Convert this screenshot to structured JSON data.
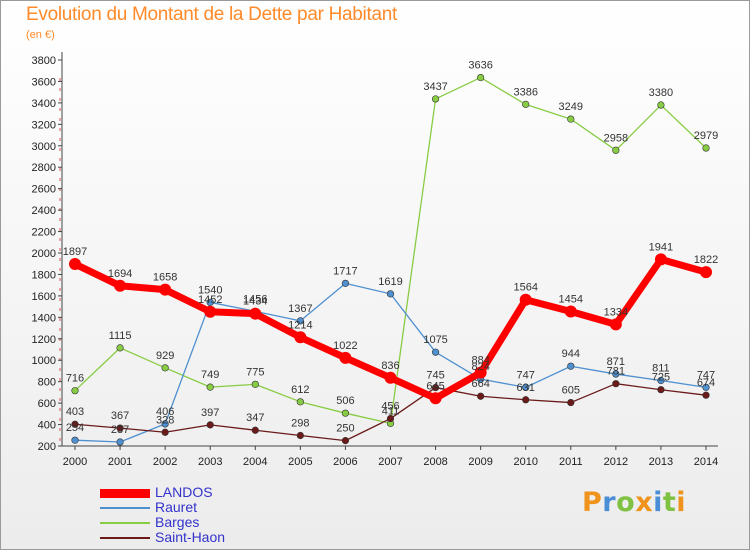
{
  "header": {
    "title": "Evolution du Montant de la Dette par Habitant",
    "subtitle": "(en €)"
  },
  "logo": {
    "text": "Proxiti"
  },
  "chart_data": {
    "type": "line",
    "title": "Evolution du Montant de la Dette par Habitant",
    "subtitle": "(en €)",
    "xlabel": "",
    "ylabel": "",
    "ylim": [
      200,
      3800
    ],
    "ytick_step": 200,
    "grid": false,
    "legend_position": "bottom-left",
    "x": [
      "2000",
      "2001",
      "2002",
      "2003",
      "2004",
      "2005",
      "2006",
      "2007",
      "2008",
      "2009",
      "2010",
      "2011",
      "2012",
      "2013",
      "2014"
    ],
    "series": [
      {
        "name": "LANDOS",
        "color": "#ff0000",
        "values": [
          1897,
          1694,
          1658,
          1452,
          1434,
          1214,
          1022,
          836,
          645,
          884,
          1564,
          1454,
          1334,
          1941,
          1822
        ]
      },
      {
        "name": "Rauret",
        "color": "#4f90d0",
        "values": [
          254,
          237,
          406,
          1540,
          1456,
          1367,
          1717,
          1619,
          1075,
          824,
          747,
          944,
          871,
          811,
          747
        ]
      },
      {
        "name": "Barges",
        "color": "#88cc44",
        "values": [
          716,
          1115,
          929,
          749,
          775,
          612,
          506,
          411,
          3437,
          3636,
          3386,
          3249,
          2958,
          3380,
          2979
        ]
      },
      {
        "name": "Saint-Haon",
        "color": "#6b1a1a",
        "values": [
          403,
          367,
          328,
          397,
          347,
          298,
          250,
          456,
          745,
          664,
          631,
          605,
          781,
          725,
          674
        ]
      }
    ]
  }
}
